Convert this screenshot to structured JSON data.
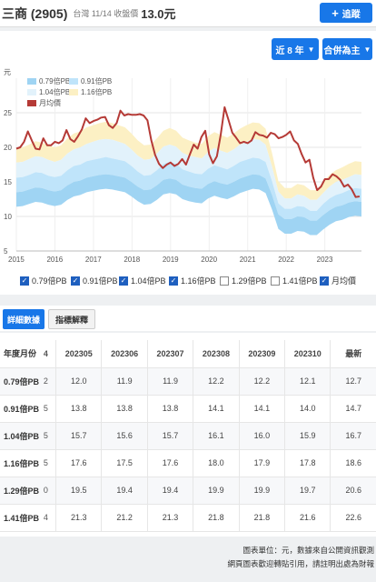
{
  "header": {
    "stock_name": "三商 (2905)",
    "market_date": "台灣 11/14 收盤價",
    "price": "13.0元",
    "follow_label": "追蹤",
    "follow_icon": "plus-icon"
  },
  "controls": {
    "range_label": "近 8 年",
    "mode_label": "合併為主",
    "chevron_icon": "chevron-down-icon"
  },
  "chart_data": {
    "type": "area",
    "ylabel": "元",
    "ylim": [
      5,
      30
    ],
    "yticks": [
      5,
      10,
      15,
      20,
      25
    ],
    "xticks": [
      "2015",
      "2016",
      "2017",
      "2018",
      "2019",
      "2020",
      "2021",
      "2022",
      "2023"
    ],
    "xrange": [
      2015.0,
      2023.95
    ],
    "legend_position": "top-left",
    "bands": [
      {
        "name": "0.79倍PB",
        "color": "#9fd4f3",
        "values": [
          13.5,
          13.6,
          13.9,
          14.2,
          14.1,
          13.8,
          13.6,
          13.8,
          14.5,
          15.0,
          15.2,
          15.6,
          15.8,
          16.0,
          16.1,
          16.0,
          15.8,
          15.6,
          15.0,
          14.3,
          13.8,
          13.9,
          14.5,
          15.3,
          15.5,
          15.3,
          14.6,
          14.3,
          14.1,
          14.0,
          14.7,
          15.1,
          14.8,
          14.6,
          15.0,
          15.5,
          15.8,
          16.1,
          16.0,
          15.5,
          13.1,
          10.3,
          9.6,
          9.6,
          10.0,
          9.9,
          9.4,
          9.4,
          10.2,
          10.9,
          11.4,
          11.6,
          12.0,
          12.2,
          12.1
        ]
      },
      {
        "name": "0.91倍PB",
        "color": "#bfe4fa",
        "values": [
          15.6,
          15.7,
          16.0,
          16.4,
          16.3,
          15.9,
          15.7,
          15.9,
          16.7,
          17.3,
          17.5,
          18.0,
          18.2,
          18.4,
          18.6,
          18.4,
          18.2,
          18.0,
          17.3,
          16.5,
          15.9,
          16.0,
          16.7,
          17.6,
          17.9,
          17.6,
          16.8,
          16.5,
          16.2,
          16.1,
          16.9,
          17.4,
          17.1,
          16.8,
          17.3,
          17.9,
          18.2,
          18.5,
          18.4,
          17.9,
          15.1,
          11.9,
          11.1,
          11.1,
          11.5,
          11.4,
          10.8,
          10.8,
          11.8,
          12.6,
          13.1,
          13.4,
          13.8,
          14.1,
          14.0
        ]
      },
      {
        "name": "1.04倍PB",
        "color": "#e2f2fb",
        "values": [
          17.8,
          17.9,
          18.3,
          18.7,
          18.6,
          18.2,
          17.9,
          18.2,
          19.1,
          19.7,
          20.0,
          20.5,
          20.8,
          21.1,
          21.2,
          21.1,
          20.8,
          20.5,
          19.7,
          18.8,
          18.2,
          18.3,
          19.1,
          20.1,
          20.4,
          20.1,
          19.2,
          18.8,
          18.6,
          18.4,
          19.3,
          19.9,
          19.5,
          19.2,
          19.7,
          20.4,
          20.8,
          21.2,
          21.1,
          20.4,
          17.2,
          13.6,
          12.6,
          12.6,
          13.2,
          13.0,
          12.4,
          12.4,
          13.4,
          14.3,
          15.0,
          15.3,
          15.7,
          16.1,
          16.0
        ]
      },
      {
        "name": "1.16倍PB",
        "color": "#fcf0c4",
        "values": [
          19.9,
          20.0,
          20.4,
          20.9,
          20.7,
          20.3,
          20.0,
          20.3,
          21.3,
          22.0,
          22.3,
          22.9,
          23.2,
          23.5,
          23.7,
          23.5,
          23.2,
          22.9,
          22.0,
          21.0,
          20.3,
          20.4,
          21.3,
          22.4,
          22.8,
          22.4,
          21.4,
          21.0,
          20.7,
          20.5,
          21.6,
          22.2,
          21.8,
          21.4,
          22.0,
          22.7,
          23.2,
          23.6,
          23.5,
          22.7,
          19.2,
          15.1,
          14.1,
          14.1,
          14.7,
          14.5,
          13.8,
          13.8,
          15.0,
          16.0,
          16.7,
          17.1,
          17.6,
          18.0,
          17.9
        ]
      },
      {
        "name": "1.29倍PB",
        "visible": false,
        "values": [
          22.1,
          22.2,
          22.7,
          23.2,
          23.0,
          22.5,
          22.2,
          22.5,
          23.7,
          24.5,
          24.8,
          25.4,
          25.8,
          26.1,
          26.3,
          26.1,
          25.8,
          25.4,
          24.5,
          23.3,
          22.5,
          22.7,
          23.7,
          24.9,
          25.3,
          24.9,
          23.8,
          23.3,
          23.0,
          22.8,
          24.0,
          24.7,
          24.2,
          23.8,
          24.5,
          25.3,
          25.8,
          26.2,
          26.1,
          25.3,
          21.4,
          16.8,
          15.6,
          15.6,
          16.3,
          16.1,
          15.3,
          15.3,
          16.7,
          17.8,
          18.6,
          19.0,
          19.5,
          19.9,
          19.9
        ]
      },
      {
        "name": "1.41倍PB",
        "visible": false,
        "values": [
          24.1,
          24.3,
          24.8,
          25.3,
          25.1,
          24.6,
          24.3,
          24.6,
          25.9,
          26.8,
          27.1,
          27.8,
          28.2,
          28.6,
          28.8,
          28.6,
          28.2,
          27.8,
          26.8,
          25.5,
          24.6,
          24.8,
          25.9,
          27.2,
          27.7,
          27.2,
          26.0,
          25.5,
          25.1,
          24.9,
          26.2,
          27.0,
          26.5,
          26.0,
          26.8,
          27.7,
          28.2,
          28.7,
          28.6,
          27.7,
          23.4,
          18.4,
          17.1,
          17.1,
          17.8,
          17.6,
          16.7,
          16.7,
          18.2,
          19.5,
          20.3,
          20.8,
          21.3,
          21.8,
          21.8
        ]
      }
    ],
    "price_series": {
      "name": "月均價",
      "color": "#b53a36",
      "x": [
        2015.0,
        2015.1,
        2015.2,
        2015.3,
        2015.4,
        2015.5,
        2015.6,
        2015.7,
        2015.8,
        2015.9,
        2016.0,
        2016.1,
        2016.2,
        2016.3,
        2016.4,
        2016.5,
        2016.6,
        2016.7,
        2016.8,
        2016.9,
        2017.0,
        2017.1,
        2017.2,
        2017.3,
        2017.4,
        2017.5,
        2017.6,
        2017.7,
        2017.8,
        2017.9,
        2018.0,
        2018.1,
        2018.2,
        2018.3,
        2018.4,
        2018.5,
        2018.6,
        2018.7,
        2018.8,
        2018.9,
        2019.0,
        2019.1,
        2019.2,
        2019.3,
        2019.4,
        2019.5,
        2019.6,
        2019.7,
        2019.8,
        2019.9,
        2020.0,
        2020.1,
        2020.2,
        2020.3,
        2020.4,
        2020.5,
        2020.6,
        2020.7,
        2020.8,
        2020.9,
        2021.0,
        2021.1,
        2021.2,
        2021.3,
        2021.4,
        2021.5,
        2021.6,
        2021.7,
        2021.8,
        2021.9,
        2022.0,
        2022.1,
        2022.2,
        2022.3,
        2022.4,
        2022.5,
        2022.6,
        2022.7,
        2022.8,
        2022.9,
        2023.0,
        2023.1,
        2023.2,
        2023.3,
        2023.4,
        2023.5,
        2023.6,
        2023.7,
        2023.8,
        2023.9
      ],
      "values": [
        19.8,
        20.0,
        20.8,
        22.3,
        21.0,
        19.8,
        19.7,
        21.3,
        20.3,
        20.3,
        20.8,
        20.6,
        21.0,
        22.5,
        21.2,
        20.8,
        21.6,
        22.6,
        24.2,
        23.5,
        23.8,
        24.0,
        24.3,
        24.4,
        23.2,
        22.8,
        23.5,
        25.3,
        24.6,
        24.8,
        24.7,
        24.7,
        24.8,
        24.6,
        23.9,
        21.0,
        18.9,
        17.6,
        17.0,
        17.5,
        17.8,
        17.3,
        17.6,
        18.3,
        17.5,
        19.0,
        20.4,
        19.8,
        21.5,
        22.4,
        19.0,
        17.7,
        18.7,
        21.8,
        25.8,
        24.0,
        22.1,
        21.4,
        20.6,
        20.8,
        20.6,
        21.0,
        22.2,
        21.8,
        21.7,
        21.4,
        22.1,
        21.9,
        21.3,
        21.5,
        21.8,
        22.3,
        21.0,
        20.5,
        19.0,
        17.8,
        18.2,
        15.6,
        13.8,
        14.3,
        15.4,
        15.4,
        16.1,
        15.8,
        15.3,
        14.3,
        14.6,
        13.9,
        12.8,
        12.9
      ]
    }
  },
  "checkboxes": [
    {
      "label": "0.79倍PB",
      "checked": true
    },
    {
      "label": "0.91倍PB",
      "checked": true
    },
    {
      "label": "1.04倍PB",
      "checked": true
    },
    {
      "label": "1.16倍PB",
      "checked": true
    },
    {
      "label": "1.29倍PB",
      "checked": false
    },
    {
      "label": "1.41倍PB",
      "checked": false
    },
    {
      "label": "月均價",
      "checked": true
    }
  ],
  "tabs": {
    "detail": "詳細數據",
    "explain": "指標解釋"
  },
  "table": {
    "row_header": "年度月份",
    "clipped_header": "4",
    "columns": [
      "202305",
      "202306",
      "202307",
      "202308",
      "202309",
      "202310",
      "最新"
    ],
    "rows": [
      {
        "label": "0.79倍PB",
        "clip": "2",
        "values": [
          "12.0",
          "11.9",
          "11.9",
          "12.2",
          "12.2",
          "12.1",
          "12.7"
        ]
      },
      {
        "label": "0.91倍PB",
        "clip": "5",
        "values": [
          "13.8",
          "13.8",
          "13.8",
          "14.1",
          "14.1",
          "14.0",
          "14.7"
        ]
      },
      {
        "label": "1.04倍PB",
        "clip": "5",
        "values": [
          "15.7",
          "15.6",
          "15.7",
          "16.1",
          "16.0",
          "15.9",
          "16.7"
        ]
      },
      {
        "label": "1.16倍PB",
        "clip": "5",
        "values": [
          "17.6",
          "17.5",
          "17.6",
          "18.0",
          "17.9",
          "17.8",
          "18.6"
        ]
      },
      {
        "label": "1.29倍PB",
        "clip": "0",
        "values": [
          "19.5",
          "19.4",
          "19.4",
          "19.9",
          "19.9",
          "19.7",
          "20.6"
        ]
      },
      {
        "label": "1.41倍PB",
        "clip": "4",
        "values": [
          "21.3",
          "21.2",
          "21.3",
          "21.8",
          "21.8",
          "21.6",
          "22.6"
        ]
      }
    ]
  },
  "footer": {
    "line1": "圖表單位：元，數據來自公開資訊觀測",
    "line2": "網頁圖表歡迎轉貼引用，請註明出處為財報"
  }
}
